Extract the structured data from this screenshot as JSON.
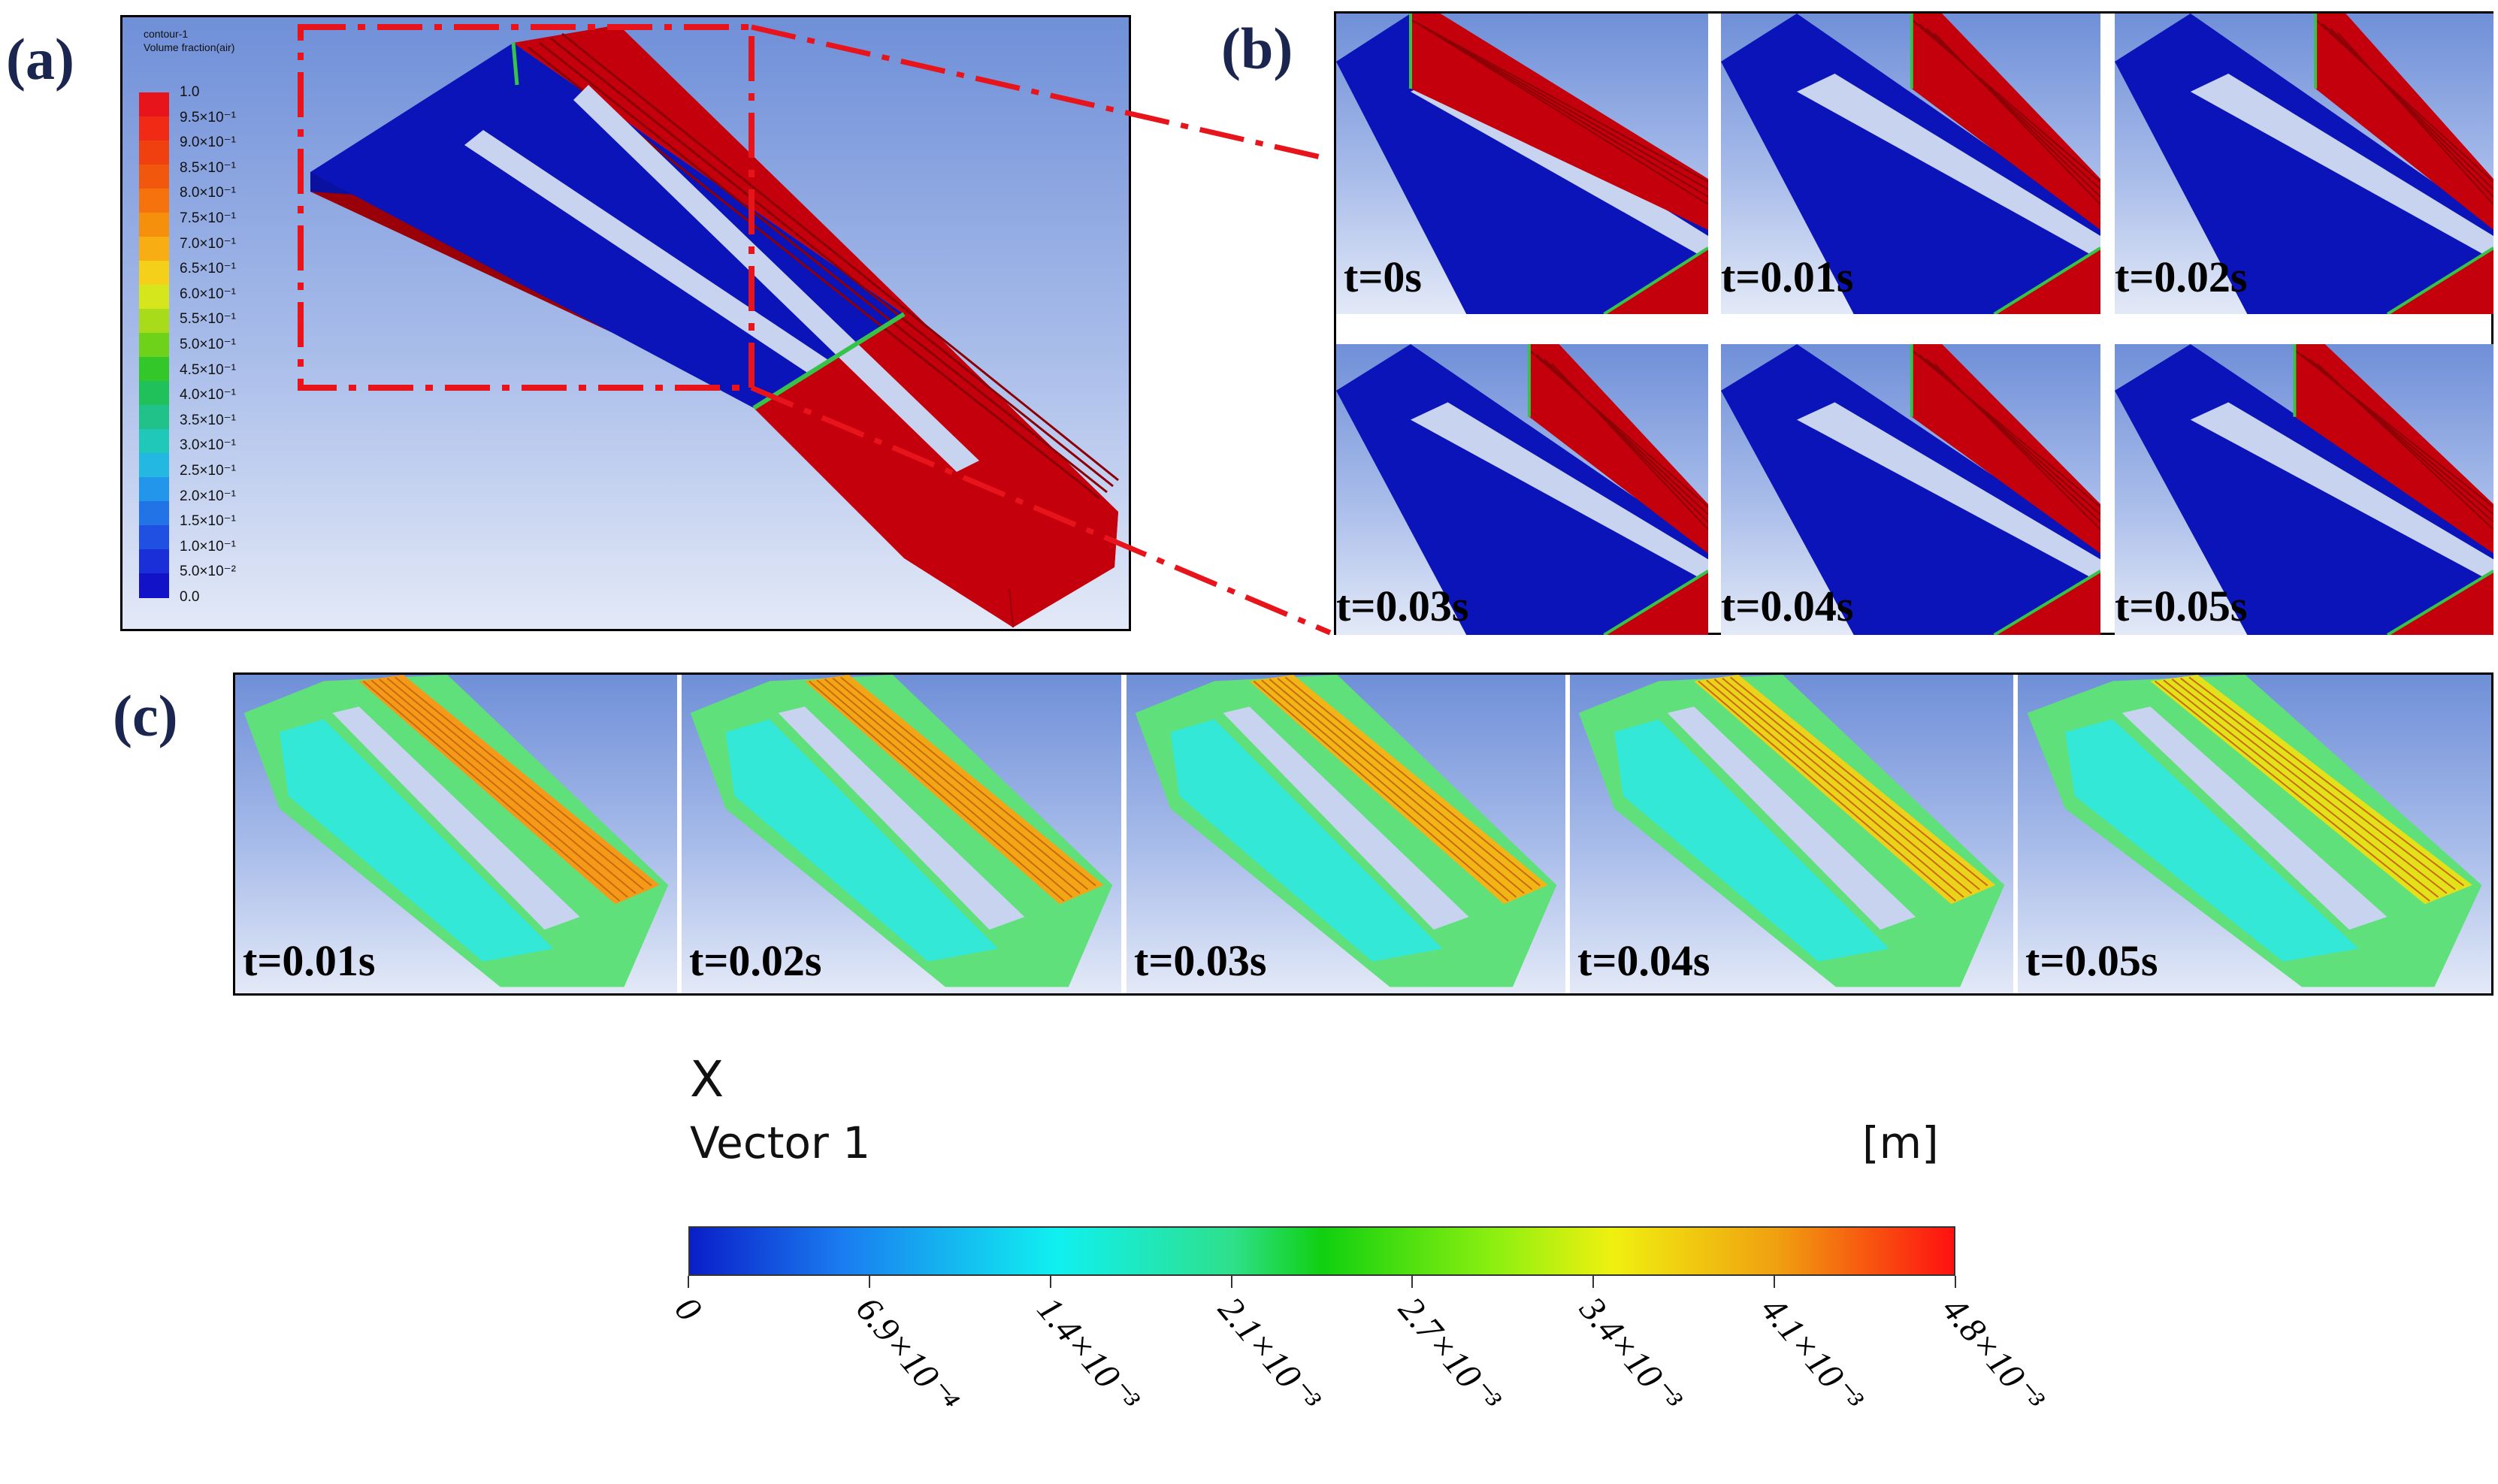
{
  "panel_labels": {
    "a": "(a)",
    "b": "(b)",
    "c": "(c)"
  },
  "panel_a": {
    "legend_title_line1": "contour-1",
    "legend_title_line2": "Volume  fraction(air)",
    "legend_ticks": [
      "1.0",
      "9.5×10⁻¹",
      "9.0×10⁻¹",
      "8.5×10⁻¹",
      "8.0×10⁻¹",
      "7.5×10⁻¹",
      "7.0×10⁻¹",
      "6.5×10⁻¹",
      "6.0×10⁻¹",
      "5.5×10⁻¹",
      "5.0×10⁻¹",
      "4.5×10⁻¹",
      "4.0×10⁻¹",
      "3.5×10⁻¹",
      "3.0×10⁻¹",
      "2.5×10⁻¹",
      "2.0×10⁻¹",
      "1.5×10⁻¹",
      "1.0×10⁻¹",
      "5.0×10⁻²",
      "0.0"
    ],
    "legend_colors": [
      "#e8141c",
      "#f02a14",
      "#f0400f",
      "#f2580d",
      "#f5720c",
      "#f5900c",
      "#f8ad12",
      "#f5d01a",
      "#d5e61c",
      "#a8dc1a",
      "#6ed21a",
      "#33c72a",
      "#20c05a",
      "#20c28a",
      "#1fc8b8",
      "#22b8e2",
      "#2296ea",
      "#2274e6",
      "#2050e2",
      "#1a2fd8",
      "#1212c8"
    ]
  },
  "panel_b": {
    "times": [
      "t=0s",
      "t=0.01s",
      "t=0.02s",
      "t=0.03s",
      "t=0.04s",
      "t=0.05s"
    ]
  },
  "panel_c": {
    "times": [
      "t=0.01s",
      "t=0.02s",
      "t=0.03s",
      "t=0.04s",
      "t=0.05s"
    ]
  },
  "colorbar": {
    "variable": "X",
    "name": "Vector 1",
    "unit": "[m]",
    "ticks": [
      "0",
      "6.9×10⁻⁴",
      "1.4×10⁻³",
      "2.1×10⁻³",
      "2.7×10⁻³",
      "3.4×10⁻³",
      "4.1×10⁻³",
      "4.8×10⁻³"
    ]
  },
  "colors": {
    "water_blue": "#0a14b8",
    "air_red": "#c4000c",
    "zoom_red": "#e8141c",
    "label_navy": "#1a2550"
  }
}
